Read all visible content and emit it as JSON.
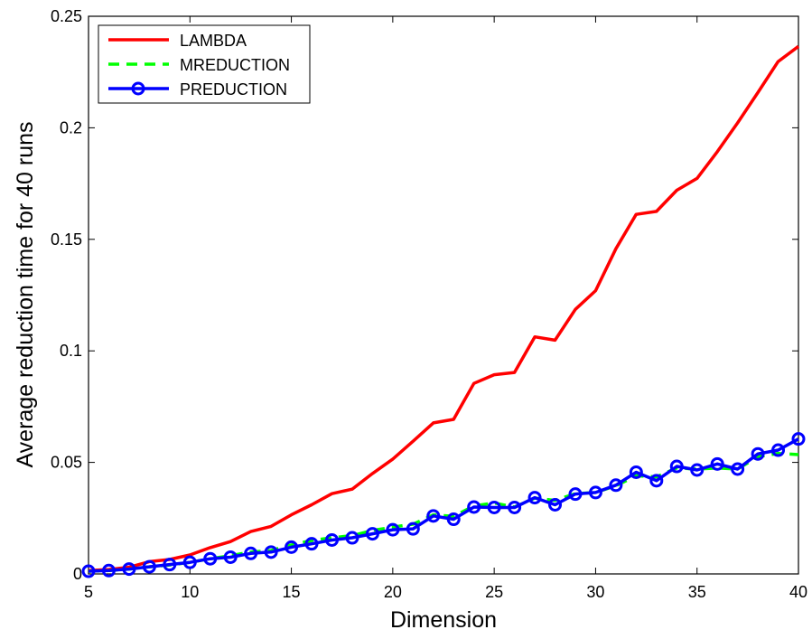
{
  "chart_data": {
    "type": "line",
    "title": "",
    "xlabel": "Dimension",
    "ylabel": "Average reduction time for 40 runs",
    "xlim": [
      5,
      40
    ],
    "ylim": [
      0,
      0.25
    ],
    "xticks": [
      5,
      10,
      15,
      20,
      25,
      30,
      35,
      40
    ],
    "xtick_labels": [
      "5",
      "10",
      "15",
      "20",
      "25",
      "30",
      "35",
      "40"
    ],
    "yticks": [
      0,
      0.05,
      0.1,
      0.15,
      0.2,
      0.25
    ],
    "ytick_labels": [
      "0",
      "0.05",
      "0.1",
      "0.15",
      "0.2",
      "0.25"
    ],
    "grid": false,
    "legend_position": "top-left",
    "x": [
      5,
      6,
      7,
      8,
      9,
      10,
      11,
      12,
      13,
      14,
      15,
      16,
      17,
      18,
      19,
      20,
      21,
      22,
      23,
      24,
      25,
      26,
      27,
      28,
      29,
      30,
      31,
      32,
      33,
      34,
      35,
      36,
      37,
      38,
      39,
      40
    ],
    "series": [
      {
        "name": "LAMBDA",
        "color": "#ff0000",
        "style": "solid",
        "marker": "none",
        "values": [
          0.0015,
          0.002,
          0.003,
          0.0055,
          0.0065,
          0.0085,
          0.0118,
          0.0145,
          0.019,
          0.0213,
          0.0265,
          0.031,
          0.036,
          0.038,
          0.045,
          0.0515,
          0.0595,
          0.0677,
          0.0693,
          0.0854,
          0.0893,
          0.0903,
          0.1063,
          0.1048,
          0.1186,
          0.127,
          0.1458,
          0.1612,
          0.1625,
          0.172,
          0.1773,
          0.1893,
          0.2022,
          0.2158,
          0.2297,
          0.2365
        ]
      },
      {
        "name": "MREDUCTION",
        "color": "#00ff00",
        "style": "dashed",
        "marker": "none",
        "values": [
          0.0012,
          0.0015,
          0.0022,
          0.0032,
          0.004,
          0.0052,
          0.0068,
          0.0082,
          0.0098,
          0.0105,
          0.013,
          0.015,
          0.0162,
          0.0172,
          0.0195,
          0.021,
          0.0223,
          0.0265,
          0.0258,
          0.0305,
          0.0318,
          0.03,
          0.034,
          0.033,
          0.036,
          0.0365,
          0.0395,
          0.044,
          0.0435,
          0.0475,
          0.047,
          0.0475,
          0.047,
          0.0525,
          0.054,
          0.0535
        ]
      },
      {
        "name": "PREDUCTION",
        "color": "#0000ff",
        "style": "solid",
        "marker": "circle",
        "values": [
          0.0012,
          0.0015,
          0.0022,
          0.0032,
          0.0042,
          0.0052,
          0.0068,
          0.0075,
          0.0092,
          0.0098,
          0.012,
          0.0135,
          0.0152,
          0.0162,
          0.018,
          0.0198,
          0.0202,
          0.026,
          0.0245,
          0.03,
          0.0298,
          0.0298,
          0.0342,
          0.031,
          0.0358,
          0.0365,
          0.0398,
          0.0456,
          0.0418,
          0.0482,
          0.0466,
          0.0493,
          0.047,
          0.0538,
          0.0555,
          0.0605
        ]
      }
    ]
  }
}
